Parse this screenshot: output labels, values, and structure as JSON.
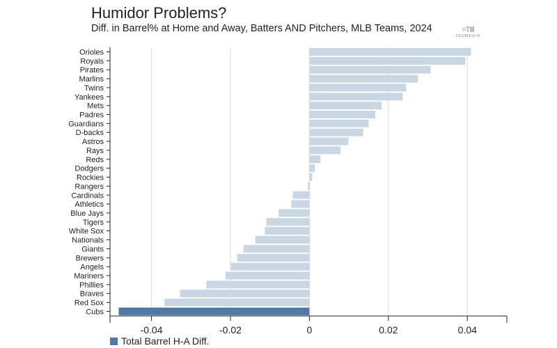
{
  "chart_data": {
    "type": "bar",
    "orientation": "horizontal",
    "title": "Humidor Problems?",
    "subtitle": "Diff. in Barrel% at Home and Away, Batters AND Pitchers, MLB Teams, 2024",
    "categories": [
      "Orioles",
      "Royals",
      "Pirates",
      "Marlins",
      "Twins",
      "Yankees",
      "Mets",
      "Padres",
      "Guardians",
      "D-backs",
      "Astros",
      "Rays",
      "Reds",
      "Dodgers",
      "Rockies",
      "Rangers",
      "Cardinals",
      "Athletics",
      "Blue Jays",
      "Tigers",
      "White Sox",
      "Nationals",
      "Giants",
      "Brewers",
      "Angels",
      "Mariners",
      "Phillies",
      "Braves",
      "Red Sox",
      "Cubs"
    ],
    "series": [
      {
        "name": "Total Barrel H-A Diff.",
        "values": [
          0.0409,
          0.0395,
          0.0307,
          0.0275,
          0.0245,
          0.0236,
          0.0183,
          0.0167,
          0.015,
          0.0136,
          0.0099,
          0.0079,
          0.0028,
          0.0014,
          0.0007,
          -0.0004,
          -0.0042,
          -0.0046,
          -0.0078,
          -0.0109,
          -0.0113,
          -0.0137,
          -0.0167,
          -0.0183,
          -0.0199,
          -0.0213,
          -0.0261,
          -0.0328,
          -0.0367,
          -0.0483
        ]
      }
    ],
    "highlight": "Cubs",
    "xlim": [
      -0.0505,
      0.05
    ],
    "xticks": [
      -0.04,
      -0.02,
      0,
      0.02,
      0.04
    ],
    "xtick_labels": [
      "-0.04",
      "-0.02",
      "0",
      "0.02",
      "0.04"
    ],
    "grid": "vertical",
    "legend": "bottom-left",
    "colors": {
      "bar": "#c9d6e3",
      "highlight": "#4f79a7",
      "grid": "#dddddd",
      "axis": "#222222"
    }
  },
  "logo": {
    "text": "TRUMEDIA"
  }
}
